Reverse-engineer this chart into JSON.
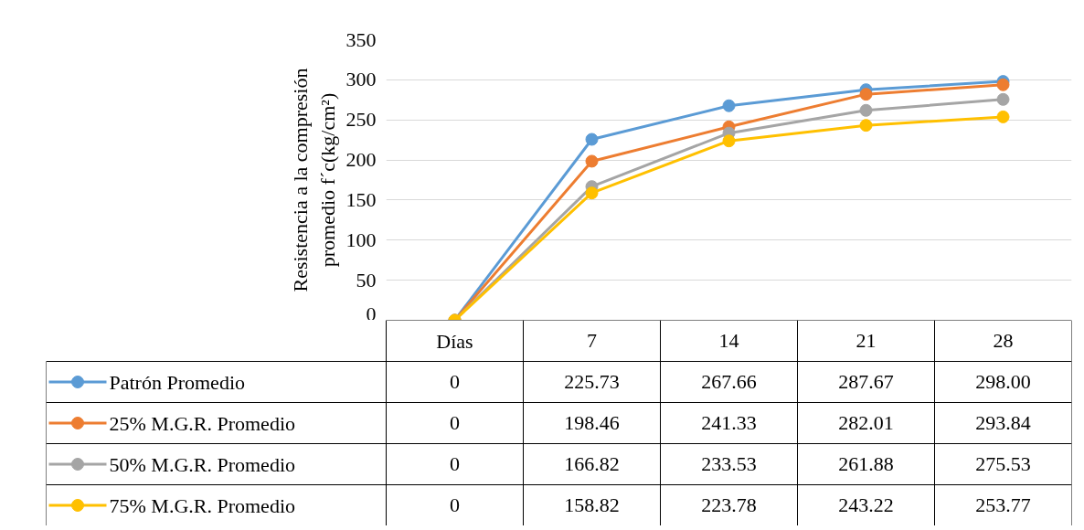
{
  "chart_data": {
    "type": "line",
    "ylabel": "Resistencia a la compresión\npromedio f´c(kg/cm²)",
    "categories": [
      "Días",
      "7",
      "14",
      "21",
      "28"
    ],
    "ylim": [
      0,
      350
    ],
    "yticks": [
      0,
      50,
      100,
      150,
      200,
      250,
      300,
      350
    ],
    "grid": "y",
    "marker": "circle",
    "legend": "bottom",
    "series": [
      {
        "name": "Patrón Promedio",
        "color": "#5b9bd5",
        "values": [
          0,
          225.73,
          267.66,
          287.67,
          298.0
        ],
        "value_labels": [
          "0",
          "225.73",
          "267.66",
          "287.67",
          "298.00"
        ]
      },
      {
        "name": "25% M.G.R. Promedio",
        "color": "#ed7d31",
        "values": [
          0,
          198.46,
          241.33,
          282.01,
          293.84
        ],
        "value_labels": [
          "0",
          "198.46",
          "241.33",
          "282.01",
          "293.84"
        ]
      },
      {
        "name": "50% M.G.R. Promedio",
        "color": "#a5a5a5",
        "values": [
          0,
          166.82,
          233.53,
          261.88,
          275.53
        ],
        "value_labels": [
          "0",
          "166.82",
          "233.53",
          "261.88",
          "275.53"
        ]
      },
      {
        "name": "75% M.G.R. Promedio",
        "color": "#ffc000",
        "values": [
          0,
          158.82,
          223.78,
          243.22,
          253.77
        ],
        "value_labels": [
          "0",
          "158.82",
          "223.78",
          "243.22",
          "253.77"
        ]
      }
    ]
  }
}
